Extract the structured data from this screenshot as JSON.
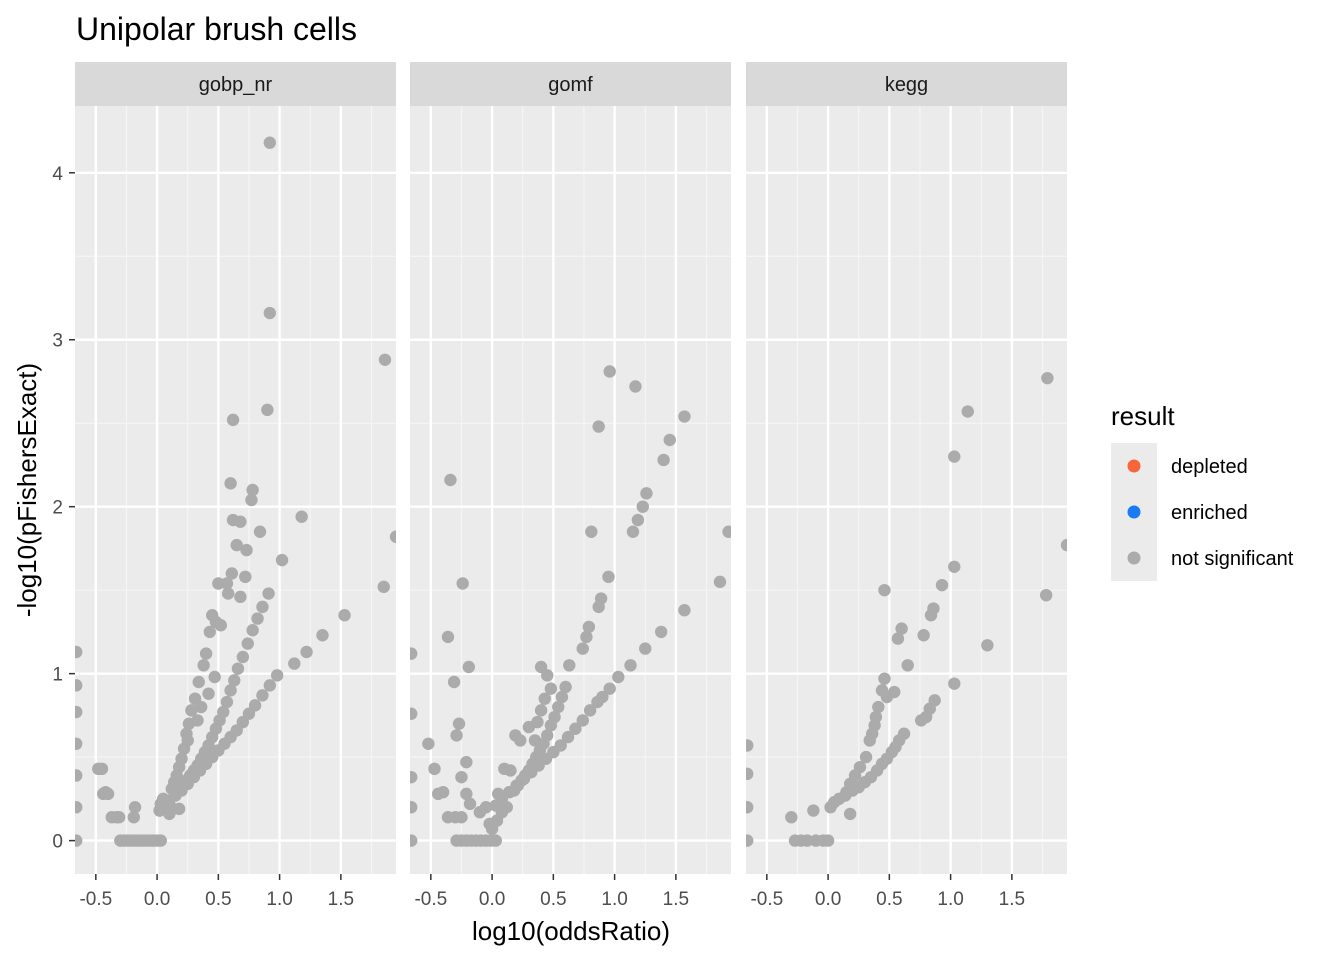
{
  "chart_data": {
    "type": "scatter",
    "title": "Unipolar brush cells",
    "xlabel": "log10(oddsRatio)",
    "ylabel": "-log10(pFishersExact)",
    "xlim": [
      -0.67,
      1.95
    ],
    "ylim": [
      -0.2,
      4.4
    ],
    "x_ticks": [
      -0.5,
      0.0,
      0.5,
      1.0,
      1.5
    ],
    "x_tick_labels": [
      "-0.5",
      "0.0",
      "0.5",
      "1.0",
      "1.5"
    ],
    "y_ticks": [
      0,
      1,
      2,
      3,
      4
    ],
    "y_tick_labels": [
      "0",
      "1",
      "2",
      "3",
      "4"
    ],
    "grid": true,
    "legend": {
      "title": "result",
      "position": "right",
      "entries": [
        {
          "label": "depleted",
          "color": "#F8653B"
        },
        {
          "label": "enriched",
          "color": "#1A7CF5"
        },
        {
          "label": "not significant",
          "color": "#ABABAB"
        }
      ]
    },
    "panels": [
      {
        "name": "gobp_nr",
        "points": [
          [
            -0.66,
            1.13
          ],
          [
            -0.66,
            0.93
          ],
          [
            -0.66,
            0.77
          ],
          [
            -0.66,
            0.58
          ],
          [
            -0.66,
            0.39
          ],
          [
            -0.66,
            0.2
          ],
          [
            -0.66,
            0.0
          ],
          [
            -0.48,
            0.43
          ],
          [
            -0.45,
            0.43
          ],
          [
            -0.44,
            0.28
          ],
          [
            -0.42,
            0.29
          ],
          [
            -0.4,
            0.28
          ],
          [
            -0.37,
            0.14
          ],
          [
            -0.33,
            0.14
          ],
          [
            -0.31,
            0.14
          ],
          [
            -0.18,
            0.2
          ],
          [
            -0.19,
            0.14
          ],
          [
            -0.3,
            0.0
          ],
          [
            -0.27,
            0.0
          ],
          [
            -0.24,
            0.0
          ],
          [
            -0.21,
            0.0
          ],
          [
            -0.18,
            0.0
          ],
          [
            -0.15,
            0.0
          ],
          [
            -0.12,
            0.0
          ],
          [
            -0.09,
            0.0
          ],
          [
            -0.06,
            0.0
          ],
          [
            -0.03,
            0.0
          ],
          [
            0.0,
            0.0
          ],
          [
            0.03,
            0.0
          ],
          [
            0.02,
            0.18
          ],
          [
            0.03,
            0.22
          ],
          [
            0.05,
            0.25
          ],
          [
            0.07,
            0.23
          ],
          [
            0.1,
            0.16
          ],
          [
            0.13,
            0.19
          ],
          [
            0.18,
            0.19
          ],
          [
            0.92,
            4.18
          ],
          [
            0.92,
            3.16
          ],
          [
            0.9,
            2.58
          ],
          [
            1.86,
            2.88
          ],
          [
            0.62,
            2.52
          ],
          [
            0.78,
            2.1
          ],
          [
            0.77,
            2.04
          ],
          [
            0.6,
            2.14
          ],
          [
            0.62,
            1.92
          ],
          [
            0.68,
            1.91
          ],
          [
            0.84,
            1.85
          ],
          [
            1.18,
            1.94
          ],
          [
            1.95,
            1.82
          ],
          [
            0.65,
            1.77
          ],
          [
            1.02,
            1.68
          ],
          [
            0.73,
            1.74
          ],
          [
            0.61,
            1.6
          ],
          [
            0.72,
            1.58
          ],
          [
            0.5,
            1.54
          ],
          [
            0.57,
            1.54
          ],
          [
            0.58,
            1.48
          ],
          [
            0.91,
            1.48
          ],
          [
            0.68,
            1.46
          ],
          [
            1.85,
            1.52
          ],
          [
            1.53,
            1.35
          ],
          [
            1.35,
            1.23
          ],
          [
            1.22,
            1.13
          ],
          [
            1.12,
            1.06
          ],
          [
            0.45,
            1.35
          ],
          [
            0.48,
            1.31
          ],
          [
            0.52,
            1.29
          ],
          [
            0.43,
            1.25
          ],
          [
            0.4,
            1.12
          ],
          [
            0.38,
            1.05
          ],
          [
            0.34,
            0.95
          ],
          [
            0.31,
            0.85
          ],
          [
            0.28,
            0.78
          ],
          [
            0.26,
            0.7
          ],
          [
            0.24,
            0.64
          ],
          [
            0.22,
            0.55
          ],
          [
            0.2,
            0.49
          ],
          [
            0.18,
            0.44
          ],
          [
            0.16,
            0.39
          ],
          [
            0.14,
            0.35
          ],
          [
            0.12,
            0.31
          ],
          [
            0.25,
            0.6
          ],
          [
            0.33,
            0.72
          ],
          [
            0.36,
            0.8
          ],
          [
            0.42,
            0.88
          ],
          [
            0.47,
            0.98
          ],
          [
            0.86,
            1.4
          ],
          [
            0.82,
            1.33
          ],
          [
            0.78,
            1.26
          ],
          [
            0.74,
            1.18
          ],
          [
            0.7,
            1.1
          ],
          [
            0.66,
            1.03
          ],
          [
            0.63,
            0.96
          ],
          [
            0.6,
            0.9
          ],
          [
            0.57,
            0.83
          ],
          [
            0.54,
            0.77
          ],
          [
            0.51,
            0.72
          ],
          [
            0.48,
            0.67
          ],
          [
            0.45,
            0.62
          ],
          [
            0.42,
            0.57
          ],
          [
            0.39,
            0.53
          ],
          [
            0.36,
            0.49
          ],
          [
            0.33,
            0.45
          ],
          [
            0.3,
            0.42
          ],
          [
            0.27,
            0.39
          ],
          [
            0.24,
            0.36
          ],
          [
            0.21,
            0.33
          ],
          [
            0.18,
            0.3
          ],
          [
            0.98,
            0.99
          ],
          [
            0.92,
            0.93
          ],
          [
            0.86,
            0.87
          ],
          [
            0.8,
            0.81
          ],
          [
            0.75,
            0.76
          ],
          [
            0.7,
            0.71
          ],
          [
            0.65,
            0.66
          ],
          [
            0.6,
            0.62
          ],
          [
            0.55,
            0.58
          ],
          [
            0.5,
            0.54
          ],
          [
            0.45,
            0.5
          ],
          [
            0.4,
            0.46
          ],
          [
            0.35,
            0.42
          ],
          [
            0.3,
            0.38
          ],
          [
            0.25,
            0.34
          ],
          [
            0.2,
            0.3
          ],
          [
            0.15,
            0.27
          ],
          [
            0.1,
            0.24
          ],
          [
            0.06,
            0.21
          ]
        ]
      },
      {
        "name": "gomf",
        "points": [
          [
            -0.66,
            1.12
          ],
          [
            -0.66,
            0.76
          ],
          [
            -0.66,
            0.38
          ],
          [
            -0.66,
            0.2
          ],
          [
            -0.66,
            0.0
          ],
          [
            -0.52,
            0.58
          ],
          [
            -0.47,
            0.43
          ],
          [
            -0.44,
            0.28
          ],
          [
            -0.4,
            0.29
          ],
          [
            -0.36,
            0.14
          ],
          [
            -0.3,
            0.14
          ],
          [
            -0.25,
            0.14
          ],
          [
            -0.34,
            2.16
          ],
          [
            -0.24,
            1.54
          ],
          [
            -0.36,
            1.22
          ],
          [
            -0.19,
            1.04
          ],
          [
            -0.31,
            0.95
          ],
          [
            -0.27,
            0.7
          ],
          [
            -0.29,
            0.63
          ],
          [
            -0.21,
            0.47
          ],
          [
            -0.25,
            0.38
          ],
          [
            -0.21,
            0.28
          ],
          [
            -0.18,
            0.22
          ],
          [
            -0.29,
            0.0
          ],
          [
            -0.25,
            0.0
          ],
          [
            -0.21,
            0.0
          ],
          [
            -0.17,
            0.0
          ],
          [
            -0.13,
            0.0
          ],
          [
            -0.09,
            0.0
          ],
          [
            -0.05,
            0.0
          ],
          [
            -0.01,
            0.0
          ],
          [
            0.03,
            0.0
          ],
          [
            -0.1,
            0.17
          ],
          [
            -0.05,
            0.2
          ],
          [
            -0.02,
            0.1
          ],
          [
            0.0,
            0.07
          ],
          [
            0.04,
            0.12
          ],
          [
            0.08,
            0.17
          ],
          [
            0.12,
            0.2
          ],
          [
            0.05,
            0.28
          ],
          [
            0.1,
            0.43
          ],
          [
            0.15,
            0.42
          ],
          [
            0.19,
            0.63
          ],
          [
            0.23,
            0.6
          ],
          [
            0.3,
            0.68
          ],
          [
            0.35,
            0.6
          ],
          [
            0.96,
            2.81
          ],
          [
            1.17,
            2.72
          ],
          [
            0.87,
            2.48
          ],
          [
            1.57,
            2.54
          ],
          [
            1.45,
            2.4
          ],
          [
            1.4,
            2.28
          ],
          [
            1.26,
            2.08
          ],
          [
            1.23,
            2.0
          ],
          [
            1.19,
            1.92
          ],
          [
            1.15,
            1.85
          ],
          [
            0.81,
            1.85
          ],
          [
            1.93,
            1.85
          ],
          [
            0.95,
            1.58
          ],
          [
            1.86,
            1.55
          ],
          [
            0.89,
            1.45
          ],
          [
            0.87,
            1.4
          ],
          [
            1.57,
            1.38
          ],
          [
            0.79,
            1.28
          ],
          [
            0.77,
            1.22
          ],
          [
            0.74,
            1.15
          ],
          [
            0.63,
            1.05
          ],
          [
            1.38,
            1.25
          ],
          [
            1.25,
            1.15
          ],
          [
            1.13,
            1.05
          ],
          [
            1.03,
            0.98
          ],
          [
            0.96,
            0.91
          ],
          [
            0.9,
            0.86
          ],
          [
            0.4,
            1.04
          ],
          [
            0.45,
            0.99
          ],
          [
            0.48,
            0.91
          ],
          [
            0.43,
            0.85
          ],
          [
            0.4,
            0.78
          ],
          [
            0.37,
            0.71
          ],
          [
            0.6,
            0.92
          ],
          [
            0.57,
            0.86
          ],
          [
            0.54,
            0.8
          ],
          [
            0.51,
            0.74
          ],
          [
            0.48,
            0.69
          ],
          [
            0.45,
            0.63
          ],
          [
            0.42,
            0.58
          ],
          [
            0.39,
            0.54
          ],
          [
            0.36,
            0.5
          ],
          [
            0.33,
            0.46
          ],
          [
            0.3,
            0.42
          ],
          [
            0.27,
            0.39
          ],
          [
            0.24,
            0.36
          ],
          [
            0.21,
            0.33
          ],
          [
            0.18,
            0.3
          ],
          [
            0.86,
            0.83
          ],
          [
            0.8,
            0.78
          ],
          [
            0.74,
            0.72
          ],
          [
            0.68,
            0.67
          ],
          [
            0.62,
            0.62
          ],
          [
            0.56,
            0.57
          ],
          [
            0.5,
            0.53
          ],
          [
            0.44,
            0.49
          ],
          [
            0.38,
            0.45
          ],
          [
            0.32,
            0.41
          ],
          [
            0.26,
            0.37
          ],
          [
            0.2,
            0.33
          ],
          [
            0.14,
            0.29
          ],
          [
            0.08,
            0.25
          ],
          [
            0.03,
            0.21
          ]
        ]
      },
      {
        "name": "kegg",
        "points": [
          [
            -0.66,
            0.57
          ],
          [
            -0.66,
            0.4
          ],
          [
            -0.66,
            0.2
          ],
          [
            -0.66,
            0.0
          ],
          [
            -0.3,
            0.14
          ],
          [
            -0.12,
            0.18
          ],
          [
            -0.27,
            0.0
          ],
          [
            -0.22,
            0.0
          ],
          [
            -0.17,
            0.0
          ],
          [
            -0.1,
            0.0
          ],
          [
            -0.04,
            0.0
          ],
          [
            0.0,
            0.0
          ],
          [
            1.79,
            2.77
          ],
          [
            1.14,
            2.57
          ],
          [
            1.03,
            2.3
          ],
          [
            1.95,
            1.77
          ],
          [
            1.03,
            1.64
          ],
          [
            0.93,
            1.53
          ],
          [
            0.46,
            1.5
          ],
          [
            1.78,
            1.47
          ],
          [
            0.86,
            1.39
          ],
          [
            0.84,
            1.35
          ],
          [
            0.6,
            1.27
          ],
          [
            0.57,
            1.21
          ],
          [
            0.78,
            1.23
          ],
          [
            1.3,
            1.17
          ],
          [
            0.65,
            1.05
          ],
          [
            1.03,
            0.94
          ],
          [
            0.87,
            0.84
          ],
          [
            0.83,
            0.79
          ],
          [
            0.8,
            0.74
          ],
          [
            0.76,
            0.72
          ],
          [
            0.46,
            0.97
          ],
          [
            0.44,
            0.9
          ],
          [
            0.48,
            0.86
          ],
          [
            0.54,
            0.89
          ],
          [
            0.41,
            0.8
          ],
          [
            0.39,
            0.74
          ],
          [
            0.38,
            0.69
          ],
          [
            0.36,
            0.64
          ],
          [
            0.34,
            0.6
          ],
          [
            0.31,
            0.5
          ],
          [
            0.26,
            0.44
          ],
          [
            0.22,
            0.39
          ],
          [
            0.18,
            0.34
          ],
          [
            0.15,
            0.29
          ],
          [
            0.62,
            0.64
          ],
          [
            0.58,
            0.6
          ],
          [
            0.55,
            0.56
          ],
          [
            0.52,
            0.53
          ],
          [
            0.48,
            0.49
          ],
          [
            0.44,
            0.46
          ],
          [
            0.4,
            0.42
          ],
          [
            0.35,
            0.38
          ],
          [
            0.3,
            0.35
          ],
          [
            0.25,
            0.32
          ],
          [
            0.2,
            0.3
          ],
          [
            0.14,
            0.27
          ],
          [
            0.09,
            0.25
          ],
          [
            0.05,
            0.23
          ],
          [
            0.02,
            0.2
          ],
          [
            0.18,
            0.16
          ]
        ]
      }
    ]
  }
}
